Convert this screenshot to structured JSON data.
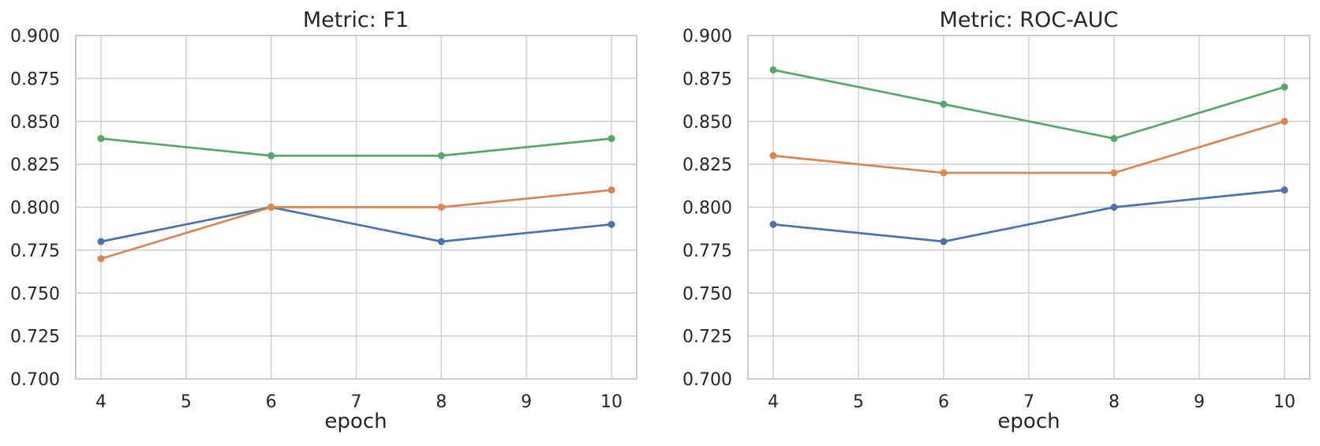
{
  "figure": {
    "background_color": "#ffffff",
    "grid_color": "#cccccc",
    "frame_color": "#cccccc",
    "text_color": "#262626"
  },
  "chart_data": [
    {
      "type": "line",
      "title": "Metric: F1",
      "xlabel": "epoch",
      "ylabel": "",
      "x": [
        4,
        6,
        8,
        10
      ],
      "xlim": [
        4,
        10
      ],
      "ylim": [
        0.7,
        0.9
      ],
      "xticks": [
        "4",
        "5",
        "6",
        "7",
        "8",
        "9",
        "10"
      ],
      "yticks": [
        "0.700",
        "0.725",
        "0.750",
        "0.775",
        "0.800",
        "0.825",
        "0.850",
        "0.875",
        "0.900"
      ],
      "grid": true,
      "legend_position": "none",
      "series": [
        {
          "color": "#4C72B0",
          "values": [
            0.78,
            0.8,
            0.78,
            0.79
          ]
        },
        {
          "color": "#DD8452",
          "values": [
            0.77,
            0.8,
            0.8,
            0.81
          ]
        },
        {
          "color": "#55A868",
          "values": [
            0.84,
            0.83,
            0.83,
            0.84
          ]
        }
      ]
    },
    {
      "type": "line",
      "title": "Metric: ROC-AUC",
      "xlabel": "epoch",
      "ylabel": "",
      "x": [
        4,
        6,
        8,
        10
      ],
      "xlim": [
        4,
        10
      ],
      "ylim": [
        0.7,
        0.9
      ],
      "xticks": [
        "4",
        "5",
        "6",
        "7",
        "8",
        "9",
        "10"
      ],
      "yticks": [
        "0.700",
        "0.725",
        "0.750",
        "0.775",
        "0.800",
        "0.825",
        "0.850",
        "0.875",
        "0.900"
      ],
      "grid": true,
      "legend_position": "none",
      "series": [
        {
          "color": "#4C72B0",
          "values": [
            0.79,
            0.78,
            0.8,
            0.81
          ]
        },
        {
          "color": "#DD8452",
          "values": [
            0.83,
            0.82,
            0.82,
            0.85
          ]
        },
        {
          "color": "#55A868",
          "values": [
            0.88,
            0.86,
            0.84,
            0.87
          ]
        }
      ]
    }
  ]
}
